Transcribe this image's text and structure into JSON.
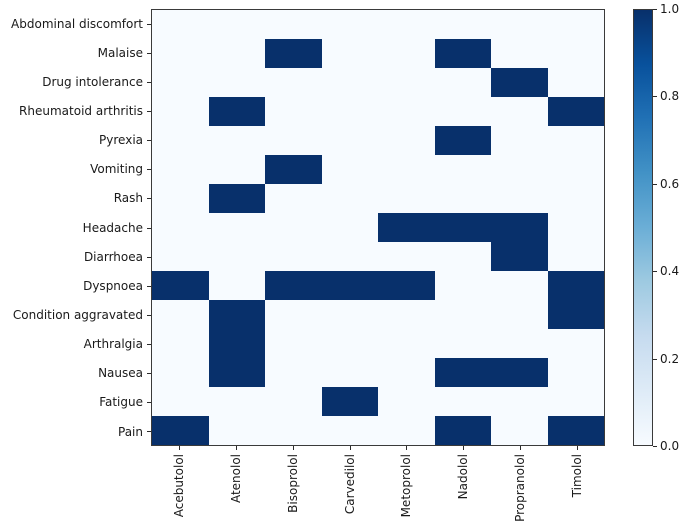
{
  "chart_data": {
    "type": "heatmap",
    "title": "",
    "xlabel": "",
    "ylabel": "",
    "rows": [
      "Abdominal discomfort",
      "Malaise",
      "Drug intolerance",
      "Rheumatoid arthritis",
      "Pyrexia",
      "Vomiting",
      "Rash",
      "Headache",
      "Diarrhoea",
      "Dyspnoea",
      "Condition aggravated",
      "Arthralgia",
      "Nausea",
      "Fatigue",
      "Pain"
    ],
    "columns": [
      "Acebutolol",
      "Atenolol",
      "Bisoprolol",
      "Carvedilol",
      "Metoprolol",
      "Nadolol",
      "Propranolol",
      "Timolol"
    ],
    "matrix": [
      [
        0,
        0,
        0,
        0,
        0,
        0,
        0,
        0
      ],
      [
        0,
        0,
        1,
        0,
        0,
        1,
        0,
        0
      ],
      [
        0,
        0,
        0,
        0,
        0,
        0,
        1,
        0
      ],
      [
        0,
        1,
        0,
        0,
        0,
        0,
        0,
        1
      ],
      [
        0,
        0,
        0,
        0,
        0,
        1,
        0,
        0
      ],
      [
        0,
        0,
        1,
        0,
        0,
        0,
        0,
        0
      ],
      [
        0,
        1,
        0,
        0,
        0,
        0,
        0,
        0
      ],
      [
        0,
        0,
        0,
        0,
        1,
        1,
        1,
        0
      ],
      [
        0,
        0,
        0,
        0,
        0,
        0,
        1,
        0
      ],
      [
        1,
        0,
        1,
        1,
        1,
        0,
        0,
        1
      ],
      [
        0,
        1,
        0,
        0,
        0,
        0,
        0,
        1
      ],
      [
        0,
        1,
        0,
        0,
        0,
        0,
        0,
        0
      ],
      [
        0,
        1,
        0,
        0,
        0,
        1,
        1,
        0
      ],
      [
        0,
        0,
        0,
        1,
        0,
        0,
        0,
        0
      ],
      [
        1,
        0,
        0,
        0,
        0,
        1,
        0,
        1
      ]
    ],
    "value_colors": {
      "filled": "#08306b",
      "empty": "#f7fbff"
    },
    "colorbar": {
      "min": 0.0,
      "max": 1.0,
      "tick_labels": [
        "1.0",
        "0.8",
        "0.6",
        "0.4",
        "0.2",
        "0.0"
      ],
      "gradient_top_to_bottom": [
        "#08306b",
        "#08519c",
        "#2171b5",
        "#4292c6",
        "#6baed6",
        "#9ecae1",
        "#c6dbef",
        "#deebf7",
        "#f7fbff"
      ],
      "colormap_name": "Blues"
    },
    "layout": {
      "grid": "off",
      "legend": "colorbar-right"
    }
  }
}
